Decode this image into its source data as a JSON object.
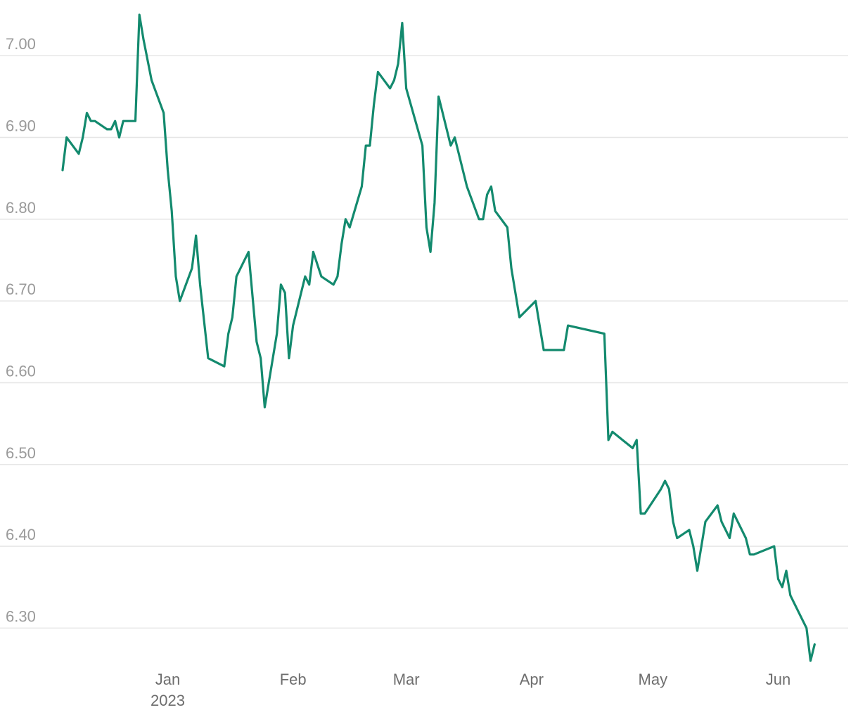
{
  "chart_data": {
    "type": "line",
    "title": "",
    "xlabel": "",
    "ylabel": "",
    "x_range": [
      "2022-12-06",
      "2023-06-15"
    ],
    "ylim": [
      6.26,
      7.05
    ],
    "y_ticks": [
      {
        "value": 6.3,
        "label": "6.30"
      },
      {
        "value": 6.4,
        "label": "6.40"
      },
      {
        "value": 6.5,
        "label": "6.50"
      },
      {
        "value": 6.6,
        "label": "6.60"
      },
      {
        "value": 6.7,
        "label": "6.70"
      },
      {
        "value": 6.8,
        "label": "6.80"
      },
      {
        "value": 6.9,
        "label": "6.90"
      },
      {
        "value": 7.0,
        "label": "7.00"
      }
    ],
    "x_ticks": [
      {
        "date": "2023-01-01",
        "label": "Jan",
        "sublabel": "2023"
      },
      {
        "date": "2023-02-01",
        "label": "Feb",
        "sublabel": ""
      },
      {
        "date": "2023-03-01",
        "label": "Mar",
        "sublabel": ""
      },
      {
        "date": "2023-04-01",
        "label": "Apr",
        "sublabel": ""
      },
      {
        "date": "2023-05-01",
        "label": "May",
        "sublabel": ""
      },
      {
        "date": "2023-06-01",
        "label": "Jun",
        "sublabel": ""
      }
    ],
    "grid": true,
    "legend": "none",
    "colors": {
      "line": "#138a6e",
      "grid": "#e6e6e6",
      "y_tick": "#9a9a9a",
      "x_tick": "#6e6e6e"
    },
    "series": [
      {
        "points": [
          [
            "2022-12-06",
            6.86
          ],
          [
            "2022-12-07",
            6.9
          ],
          [
            "2022-12-10",
            6.88
          ],
          [
            "2022-12-11",
            6.9
          ],
          [
            "2022-12-12",
            6.93
          ],
          [
            "2022-12-13",
            6.92
          ],
          [
            "2022-12-14",
            6.92
          ],
          [
            "2022-12-17",
            6.91
          ],
          [
            "2022-12-18",
            6.91
          ],
          [
            "2022-12-19",
            6.92
          ],
          [
            "2022-12-20",
            6.9
          ],
          [
            "2022-12-21",
            6.92
          ],
          [
            "2022-12-24",
            6.92
          ],
          [
            "2022-12-25",
            7.05
          ],
          [
            "2022-12-26",
            7.02
          ],
          [
            "2022-12-28",
            6.97
          ],
          [
            "2022-12-31",
            6.93
          ],
          [
            "2023-01-01",
            6.86
          ],
          [
            "2023-01-02",
            6.81
          ],
          [
            "2023-01-03",
            6.73
          ],
          [
            "2023-01-04",
            6.7
          ],
          [
            "2023-01-07",
            6.74
          ],
          [
            "2023-01-08",
            6.78
          ],
          [
            "2023-01-09",
            6.72
          ],
          [
            "2023-01-11",
            6.63
          ],
          [
            "2023-01-15",
            6.62
          ],
          [
            "2023-01-16",
            6.66
          ],
          [
            "2023-01-17",
            6.68
          ],
          [
            "2023-01-18",
            6.73
          ],
          [
            "2023-01-21",
            6.76
          ],
          [
            "2023-01-23",
            6.65
          ],
          [
            "2023-01-24",
            6.63
          ],
          [
            "2023-01-25",
            6.57
          ],
          [
            "2023-01-28",
            6.66
          ],
          [
            "2023-01-29",
            6.72
          ],
          [
            "2023-01-30",
            6.71
          ],
          [
            "2023-01-31",
            6.63
          ],
          [
            "2023-02-01",
            6.67
          ],
          [
            "2023-02-04",
            6.73
          ],
          [
            "2023-02-05",
            6.72
          ],
          [
            "2023-02-06",
            6.76
          ],
          [
            "2023-02-08",
            6.73
          ],
          [
            "2023-02-11",
            6.72
          ],
          [
            "2023-02-12",
            6.73
          ],
          [
            "2023-02-13",
            6.77
          ],
          [
            "2023-02-14",
            6.8
          ],
          [
            "2023-02-15",
            6.79
          ],
          [
            "2023-02-18",
            6.84
          ],
          [
            "2023-02-19",
            6.89
          ],
          [
            "2023-02-20",
            6.89
          ],
          [
            "2023-02-21",
            6.94
          ],
          [
            "2023-02-22",
            6.98
          ],
          [
            "2023-02-25",
            6.96
          ],
          [
            "2023-02-26",
            6.97
          ],
          [
            "2023-02-27",
            6.99
          ],
          [
            "2023-02-28",
            7.04
          ],
          [
            "2023-03-01",
            6.96
          ],
          [
            "2023-03-05",
            6.89
          ],
          [
            "2023-03-06",
            6.79
          ],
          [
            "2023-03-07",
            6.76
          ],
          [
            "2023-03-08",
            6.82
          ],
          [
            "2023-03-09",
            6.95
          ],
          [
            "2023-03-12",
            6.89
          ],
          [
            "2023-03-13",
            6.9
          ],
          [
            "2023-03-16",
            6.84
          ],
          [
            "2023-03-19",
            6.8
          ],
          [
            "2023-03-20",
            6.8
          ],
          [
            "2023-03-21",
            6.83
          ],
          [
            "2023-03-22",
            6.84
          ],
          [
            "2023-03-23",
            6.81
          ],
          [
            "2023-03-26",
            6.79
          ],
          [
            "2023-03-27",
            6.74
          ],
          [
            "2023-03-29",
            6.68
          ],
          [
            "2023-04-02",
            6.7
          ],
          [
            "2023-04-03",
            6.67
          ],
          [
            "2023-04-04",
            6.64
          ],
          [
            "2023-04-05",
            6.64
          ],
          [
            "2023-04-06",
            6.64
          ],
          [
            "2023-04-09",
            6.64
          ],
          [
            "2023-04-10",
            6.67
          ],
          [
            "2023-04-19",
            6.66
          ],
          [
            "2023-04-20",
            6.53
          ],
          [
            "2023-04-21",
            6.54
          ],
          [
            "2023-04-26",
            6.52
          ],
          [
            "2023-04-27",
            6.53
          ],
          [
            "2023-04-28",
            6.44
          ],
          [
            "2023-04-29",
            6.44
          ],
          [
            "2023-05-03",
            6.47
          ],
          [
            "2023-05-04",
            6.48
          ],
          [
            "2023-05-05",
            6.47
          ],
          [
            "2023-05-06",
            6.43
          ],
          [
            "2023-05-07",
            6.41
          ],
          [
            "2023-05-10",
            6.42
          ],
          [
            "2023-05-11",
            6.4
          ],
          [
            "2023-05-12",
            6.37
          ],
          [
            "2023-05-13",
            6.4
          ],
          [
            "2023-05-14",
            6.43
          ],
          [
            "2023-05-17",
            6.45
          ],
          [
            "2023-05-18",
            6.43
          ],
          [
            "2023-05-20",
            6.41
          ],
          [
            "2023-05-21",
            6.44
          ],
          [
            "2023-05-24",
            6.41
          ],
          [
            "2023-05-25",
            6.39
          ],
          [
            "2023-05-26",
            6.39
          ],
          [
            "2023-05-31",
            6.4
          ],
          [
            "2023-06-01",
            6.36
          ],
          [
            "2023-06-02",
            6.35
          ],
          [
            "2023-06-03",
            6.37
          ],
          [
            "2023-06-04",
            6.34
          ],
          [
            "2023-06-07",
            6.31
          ],
          [
            "2023-06-08",
            6.3
          ],
          [
            "2023-06-09",
            6.26
          ],
          [
            "2023-06-10",
            6.28
          ]
        ]
      }
    ]
  }
}
